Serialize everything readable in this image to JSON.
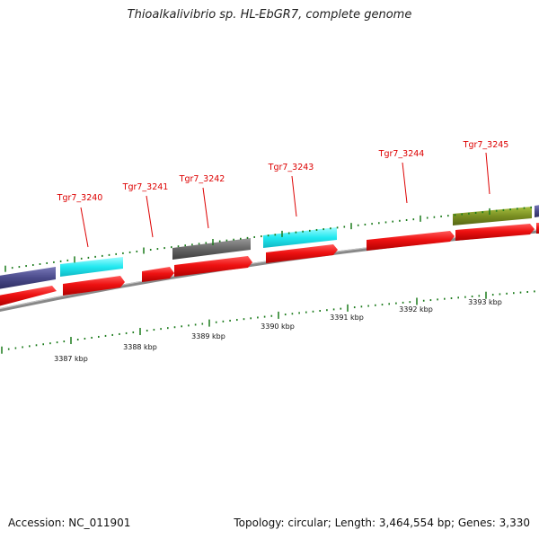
{
  "title": "Thioalkalivibrio sp. HL-EbGR7, complete genome",
  "footer": {
    "accession": "Accession: NC_011901",
    "summary": "Topology: circular; Length: 3,464,554 bp; Genes: 3,330"
  },
  "colors": {
    "gene_label": "#dd0000",
    "tick": "#1a7a1a",
    "backbone": "#888888",
    "cds_forward": "#ee1111",
    "feature_purple": "#4a4a8a",
    "feature_cyan": "#22e8f0",
    "feature_gray": "#666666",
    "feature_olive": "#7a8f22"
  },
  "genes": [
    "Tgr7_3240",
    "Tgr7_3241",
    "Tgr7_3242",
    "Tgr7_3243",
    "Tgr7_3244",
    "Tgr7_3245"
  ],
  "scale_labels": [
    "3387 kbp",
    "3388 kbp",
    "3389 kbp",
    "3390 kbp",
    "3391 kbp",
    "3392 kbp",
    "3393 kbp"
  ]
}
